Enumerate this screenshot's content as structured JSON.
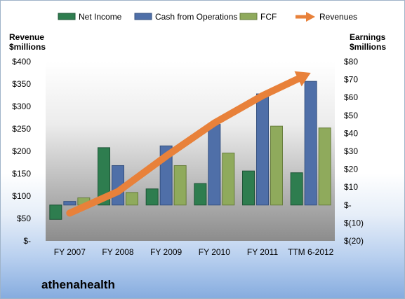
{
  "company": "athenahealth",
  "colors": {
    "net_income": "#2e7d4f",
    "cash_from_operations": "#4f6fa8",
    "fcf": "#8faa5c",
    "revenues": "#e8813a",
    "plot_top": "#ffffff",
    "plot_bottom": "#8c8c8c"
  },
  "chart_data": {
    "type": "bar",
    "categories": [
      "FY 2007",
      "FY 2008",
      "FY 2009",
      "FY 2010",
      "FY 2011",
      "TTM 6-2012"
    ],
    "series": [
      {
        "name": "Net Income",
        "axis": "right",
        "values": [
          -8,
          32,
          9,
          12,
          19,
          18
        ]
      },
      {
        "name": "Cash from Operations",
        "axis": "right",
        "values": [
          2,
          22,
          33,
          45,
          62,
          69
        ]
      },
      {
        "name": "FCF",
        "axis": "right",
        "values": [
          4,
          7,
          22,
          29,
          44,
          43
        ]
      },
      {
        "name": "Revenues",
        "axis": "left",
        "type": "line",
        "values": [
          62,
          110,
          189,
          263,
          324,
          375
        ]
      }
    ],
    "left_axis": {
      "title_lines": [
        "Revenue",
        "$millions"
      ],
      "ticks": [
        "$-",
        "$50",
        "$100",
        "$150",
        "$200",
        "$250",
        "$300",
        "$350",
        "$400"
      ],
      "ylim": [
        0,
        400
      ]
    },
    "right_axis": {
      "title_lines": [
        "Earnings",
        "$millions"
      ],
      "ticks": [
        "$(20)",
        "$(10)",
        "$-",
        "$10",
        "$20",
        "$30",
        "$40",
        "$50",
        "$60",
        "$70",
        "$80"
      ],
      "ylim": [
        -20,
        80
      ]
    },
    "legend": {
      "position": "top",
      "items": [
        {
          "label": "Net Income",
          "kind": "bar"
        },
        {
          "label": "Cash from Operations",
          "kind": "bar"
        },
        {
          "label": "FCF",
          "kind": "bar"
        },
        {
          "label": "Revenues",
          "kind": "arrow"
        }
      ]
    },
    "grid": false
  }
}
